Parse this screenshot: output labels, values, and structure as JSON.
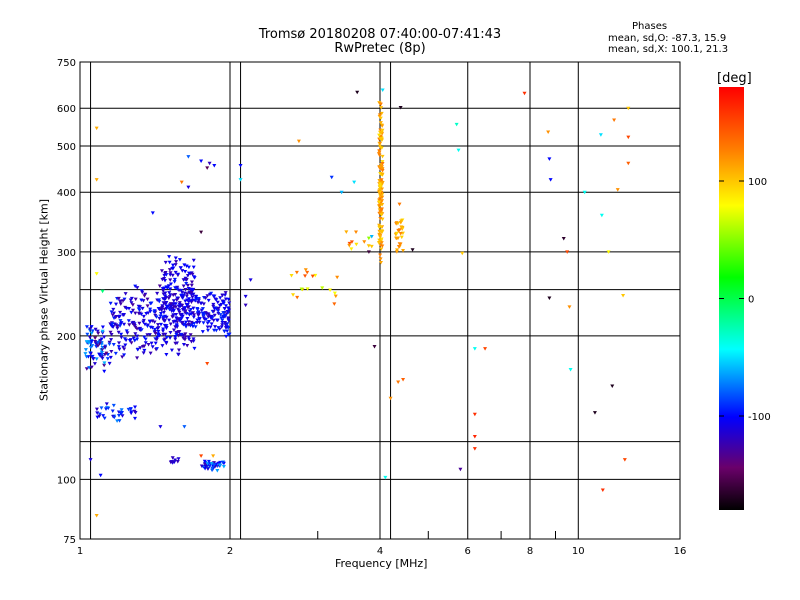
{
  "header": {
    "title_line1": "Tromsø 20180208 07:40:00-07:41:43",
    "title_line2": "RwPretec (8p)",
    "phases_title": "Phases",
    "phases_o": "mean, sd,O: -87.3, 15.9",
    "phases_x": "mean, sd,X: 100.1, 21.3"
  },
  "chart_data": {
    "type": "scatter",
    "title": "Tromsø 20180208 07:40:00-07:41:43",
    "subtitle": "RwPretec (8p)",
    "xlabel": "Frequency [MHz]",
    "ylabel": "Stationary phase Virtual Height [km]",
    "x_scale": "log",
    "y_scale": "log",
    "xlim": [
      1,
      16
    ],
    "ylim": [
      75,
      750
    ],
    "x_ticks": [
      1,
      2,
      4,
      6,
      8,
      10,
      16
    ],
    "x_grid": [
      1,
      2,
      4,
      6,
      8,
      10,
      16,
      1.05,
      2.1,
      4.2
    ],
    "x_minor": [
      3,
      5,
      7,
      9
    ],
    "y_ticks": [
      75,
      100,
      200,
      300,
      400,
      500,
      600,
      750
    ],
    "y_grid": [
      100,
      120,
      200,
      250,
      300,
      400,
      500,
      600
    ],
    "grid": true,
    "colorbar": {
      "label": "[deg]",
      "min": -180,
      "max": 180,
      "ticks": [
        100,
        0,
        -100
      ]
    },
    "series": [
      {
        "marker": "triangle",
        "clusters": [
          {
            "x": [
              1.02,
              1.15
            ],
            "y": [
              165,
              215
            ],
            "n": 80,
            "phase": [
              -140,
              -60
            ]
          },
          {
            "x": [
              1.15,
              1.45
            ],
            "y": [
              175,
              260
            ],
            "n": 180,
            "phase": [
              -130,
              -90
            ]
          },
          {
            "x": [
              1.45,
              1.7
            ],
            "y": [
              180,
              300
            ],
            "n": 280,
            "phase": [
              -125,
              -95
            ]
          },
          {
            "x": [
              1.7,
              2.0
            ],
            "y": [
              195,
              250
            ],
            "n": 140,
            "phase": [
              -120,
              -90
            ]
          },
          {
            "x": [
              1.08,
              1.3
            ],
            "y": [
              130,
              145
            ],
            "n": 35,
            "phase": [
              -120,
              -70
            ]
          },
          {
            "x": [
              1.75,
              1.95
            ],
            "y": [
              104,
              110
            ],
            "n": 40,
            "phase": [
              -125,
              -60
            ]
          },
          {
            "x": [
              1.52,
              1.58
            ],
            "y": [
              106,
              112
            ],
            "n": 10,
            "phase": [
              -125,
              -100
            ]
          },
          {
            "x": [
              3.98,
              4.05
            ],
            "y": [
              260,
              650
            ],
            "n": 130,
            "phase": [
              90,
              130
            ]
          },
          {
            "x": [
              4.3,
              4.45
            ],
            "y": [
              280,
              390
            ],
            "n": 30,
            "phase": [
              90,
              130
            ]
          },
          {
            "x": [
              2.6,
              3.3
            ],
            "y": [
              230,
              290
            ],
            "n": 18,
            "phase": [
              60,
              150
            ]
          },
          {
            "x": [
              3.4,
              3.9
            ],
            "y": [
              295,
              340
            ],
            "n": 10,
            "phase": [
              40,
              160
            ]
          }
        ],
        "points": [
          {
            "x": 1.05,
            "y": 110,
            "phase": -110
          },
          {
            "x": 1.08,
            "y": 545,
            "phase": 110
          },
          {
            "x": 1.08,
            "y": 425,
            "phase": 110
          },
          {
            "x": 1.08,
            "y": 270,
            "phase": 80
          },
          {
            "x": 1.1,
            "y": 102,
            "phase": -100
          },
          {
            "x": 1.08,
            "y": 84,
            "phase": 110
          },
          {
            "x": 1.11,
            "y": 248,
            "phase": -10
          },
          {
            "x": 1.4,
            "y": 362,
            "phase": -100
          },
          {
            "x": 1.6,
            "y": 420,
            "phase": 130
          },
          {
            "x": 1.65,
            "y": 410,
            "phase": -110
          },
          {
            "x": 1.65,
            "y": 475,
            "phase": -80
          },
          {
            "x": 1.75,
            "y": 465,
            "phase": -100
          },
          {
            "x": 1.8,
            "y": 450,
            "phase": -150
          },
          {
            "x": 1.82,
            "y": 460,
            "phase": -120
          },
          {
            "x": 1.86,
            "y": 455,
            "phase": -100
          },
          {
            "x": 2.1,
            "y": 455,
            "phase": -100
          },
          {
            "x": 2.1,
            "y": 425,
            "phase": -50
          },
          {
            "x": 1.75,
            "y": 330,
            "phase": -160
          },
          {
            "x": 1.8,
            "y": 175,
            "phase": 150
          },
          {
            "x": 1.75,
            "y": 112,
            "phase": 150
          },
          {
            "x": 1.85,
            "y": 112,
            "phase": 110
          },
          {
            "x": 1.62,
            "y": 129,
            "phase": -80
          },
          {
            "x": 1.45,
            "y": 129,
            "phase": -110
          },
          {
            "x": 2.2,
            "y": 262,
            "phase": -110
          },
          {
            "x": 2.15,
            "y": 242,
            "phase": -110
          },
          {
            "x": 2.15,
            "y": 232,
            "phase": -120
          },
          {
            "x": 2.75,
            "y": 512,
            "phase": 120
          },
          {
            "x": 3.2,
            "y": 430,
            "phase": -90
          },
          {
            "x": 3.35,
            "y": 400,
            "phase": -60
          },
          {
            "x": 3.55,
            "y": 420,
            "phase": -50
          },
          {
            "x": 3.6,
            "y": 648,
            "phase": -170
          },
          {
            "x": 4.05,
            "y": 655,
            "phase": -50
          },
          {
            "x": 4.4,
            "y": 602,
            "phase": -170
          },
          {
            "x": 3.85,
            "y": 323,
            "phase": -60
          },
          {
            "x": 3.85,
            "y": 308,
            "phase": 100
          },
          {
            "x": 3.8,
            "y": 300,
            "phase": -160
          },
          {
            "x": 3.9,
            "y": 190,
            "phase": -160
          },
          {
            "x": 4.1,
            "y": 101,
            "phase": -40
          },
          {
            "x": 4.2,
            "y": 148,
            "phase": 120
          },
          {
            "x": 4.35,
            "y": 160,
            "phase": 130
          },
          {
            "x": 4.45,
            "y": 162,
            "phase": 140
          },
          {
            "x": 4.65,
            "y": 303,
            "phase": -170
          },
          {
            "x": 5.7,
            "y": 555,
            "phase": -30
          },
          {
            "x": 5.75,
            "y": 490,
            "phase": -40
          },
          {
            "x": 5.85,
            "y": 298,
            "phase": 100
          },
          {
            "x": 5.8,
            "y": 105,
            "phase": -130
          },
          {
            "x": 6.2,
            "y": 188,
            "phase": -40
          },
          {
            "x": 6.5,
            "y": 188,
            "phase": 150
          },
          {
            "x": 6.2,
            "y": 137,
            "phase": 160
          },
          {
            "x": 6.2,
            "y": 123,
            "phase": 165
          },
          {
            "x": 6.2,
            "y": 116,
            "phase": 160
          },
          {
            "x": 7.8,
            "y": 645,
            "phase": 160
          },
          {
            "x": 8.7,
            "y": 535,
            "phase": 120
          },
          {
            "x": 8.75,
            "y": 470,
            "phase": -100
          },
          {
            "x": 8.8,
            "y": 425,
            "phase": -100
          },
          {
            "x": 8.75,
            "y": 240,
            "phase": -170
          },
          {
            "x": 9.35,
            "y": 320,
            "phase": -165
          },
          {
            "x": 9.5,
            "y": 300,
            "phase": 150
          },
          {
            "x": 9.6,
            "y": 230,
            "phase": 120
          },
          {
            "x": 9.65,
            "y": 170,
            "phase": -40
          },
          {
            "x": 10.3,
            "y": 400,
            "phase": -40
          },
          {
            "x": 10.8,
            "y": 138,
            "phase": -170
          },
          {
            "x": 11.1,
            "y": 528,
            "phase": -50
          },
          {
            "x": 11.15,
            "y": 358,
            "phase": -40
          },
          {
            "x": 11.2,
            "y": 95,
            "phase": 160
          },
          {
            "x": 11.5,
            "y": 300,
            "phase": 80
          },
          {
            "x": 11.7,
            "y": 157,
            "phase": -170
          },
          {
            "x": 11.8,
            "y": 567,
            "phase": 130
          },
          {
            "x": 12.0,
            "y": 405,
            "phase": 120
          },
          {
            "x": 12.3,
            "y": 243,
            "phase": 100
          },
          {
            "x": 12.4,
            "y": 110,
            "phase": 150
          },
          {
            "x": 12.6,
            "y": 522,
            "phase": 150
          },
          {
            "x": 12.6,
            "y": 460,
            "phase": 140
          },
          {
            "x": 12.6,
            "y": 600,
            "phase": 100
          }
        ]
      }
    ]
  }
}
